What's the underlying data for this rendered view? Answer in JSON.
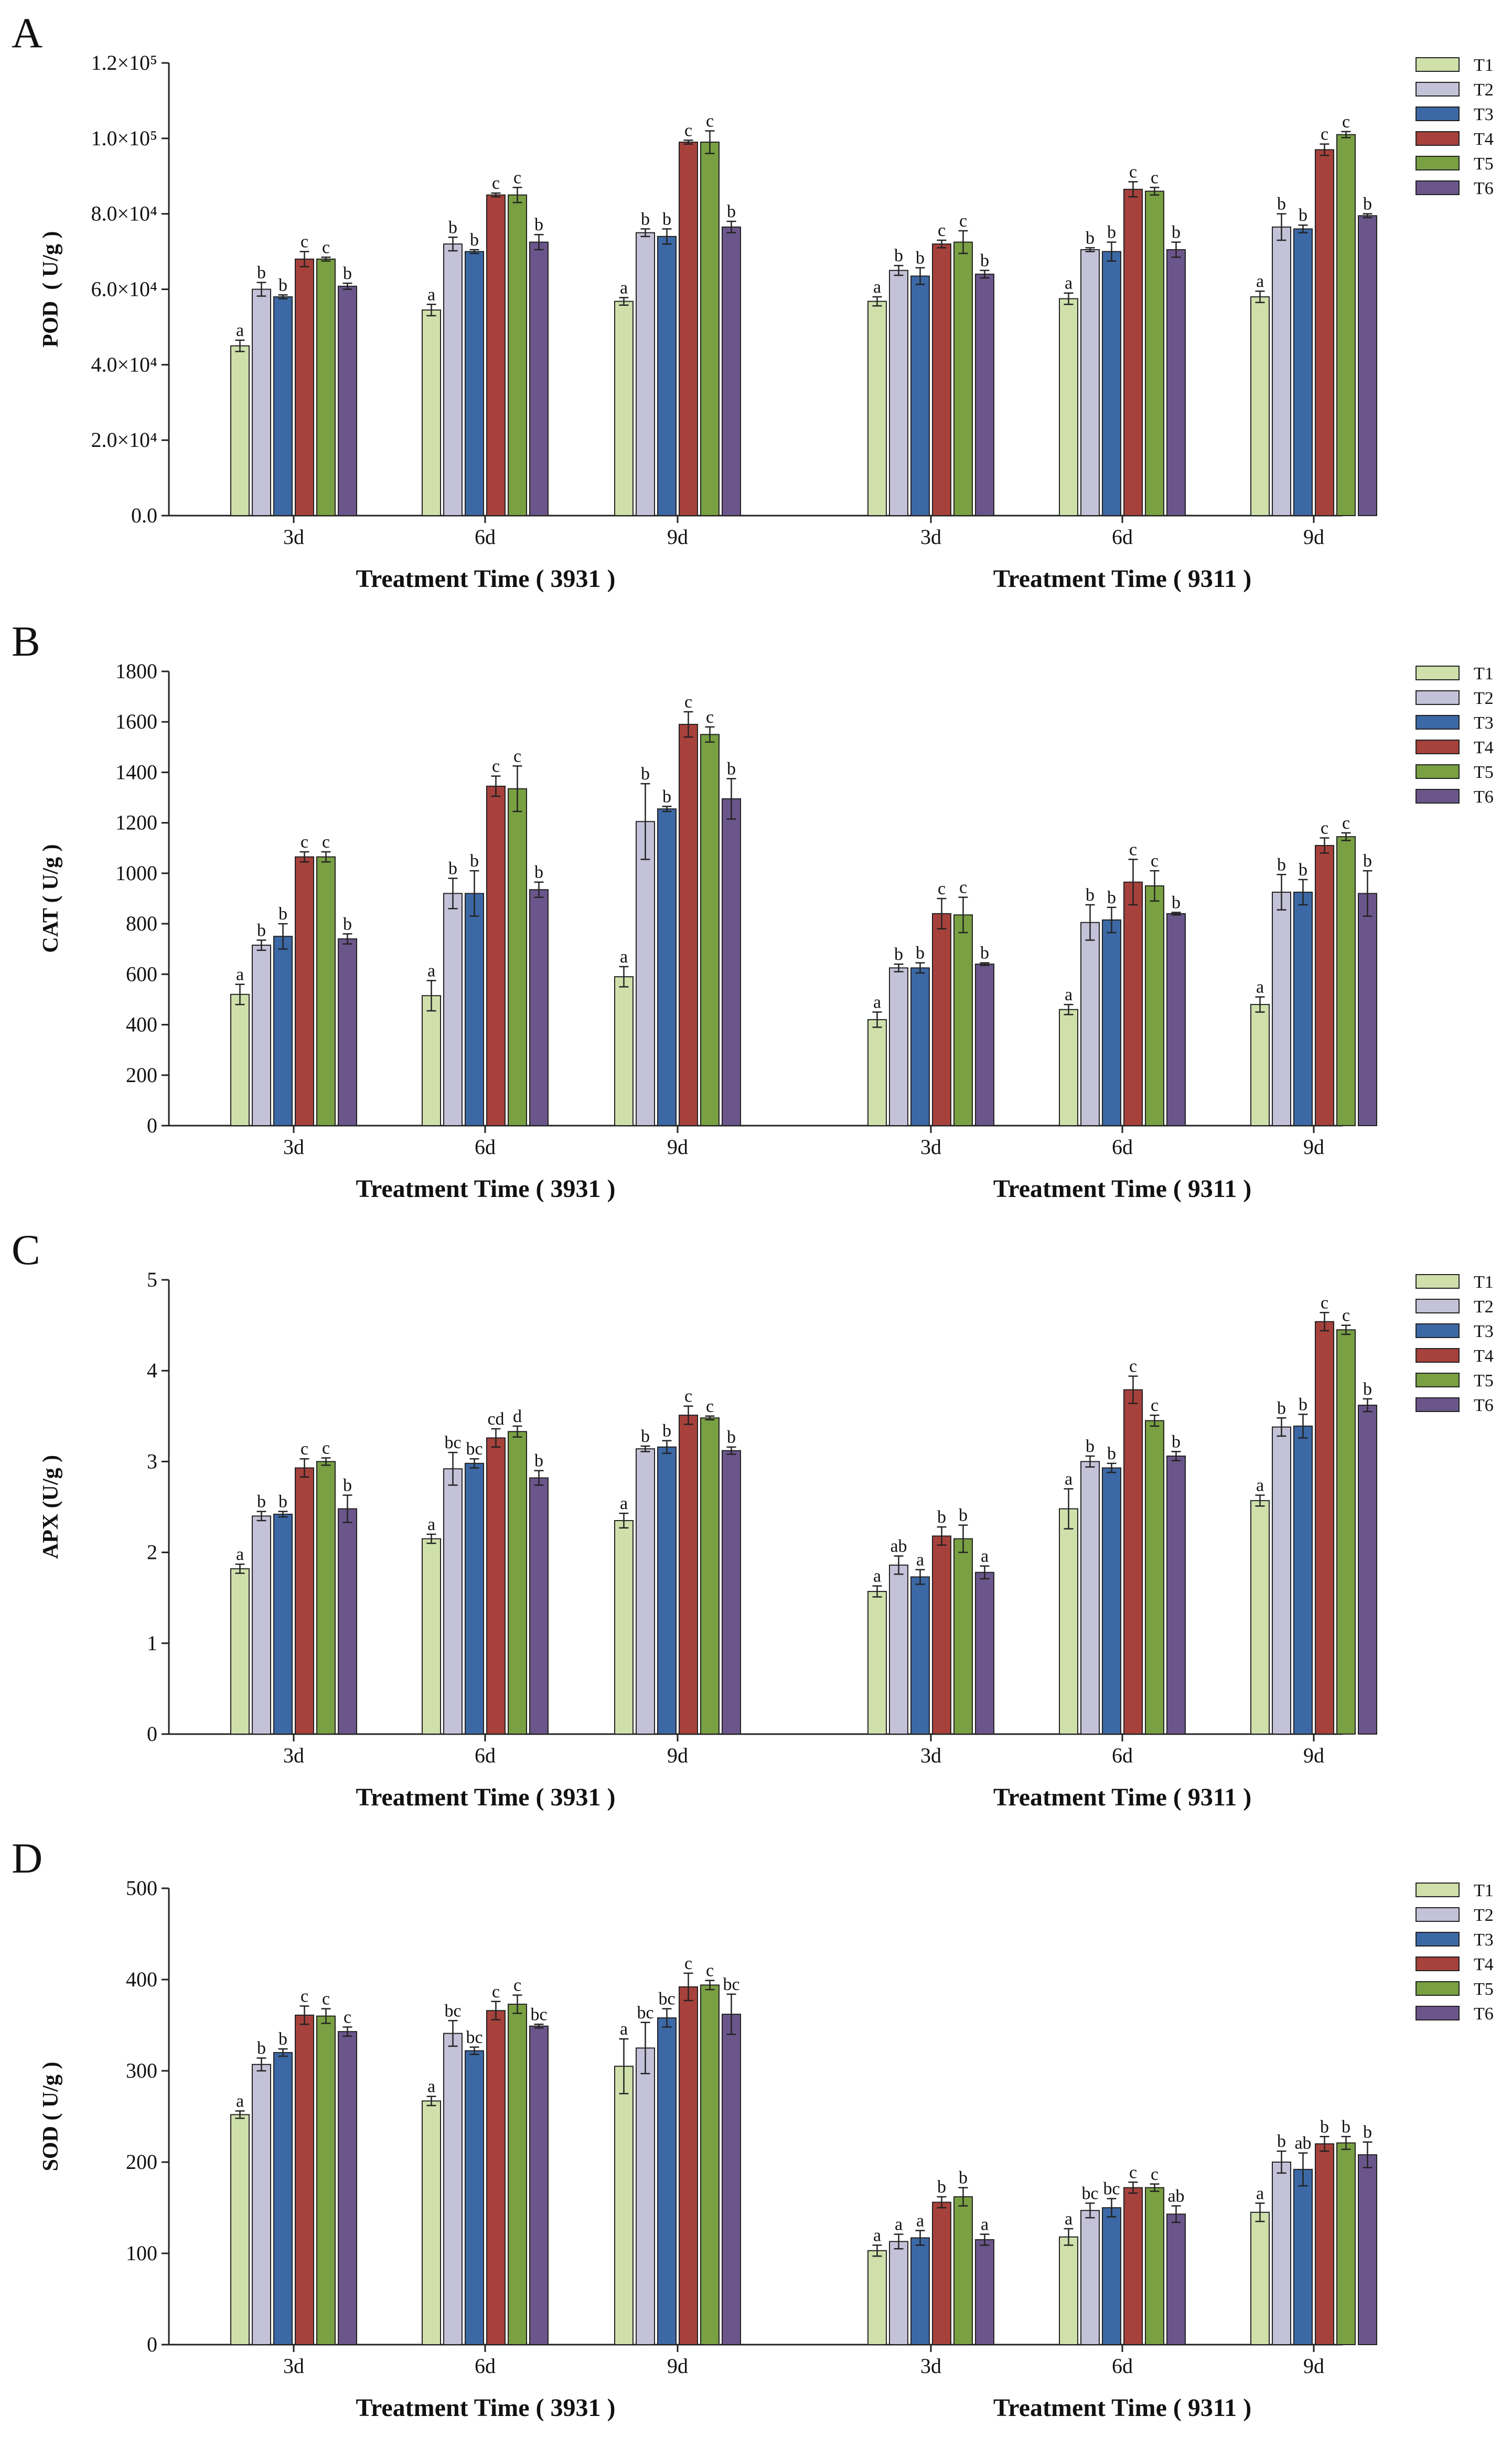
{
  "chart_data": [
    {
      "type": "bar",
      "panel": "A",
      "ylabel": "POD  ( U/g )",
      "ylim": [
        0,
        120000
      ],
      "yticks": [
        0,
        20000,
        40000,
        60000,
        80000,
        100000,
        120000
      ],
      "ytick_labels": [
        "0.0",
        "2.0×10⁴",
        "4.0×10⁴",
        "6.0×10⁴",
        "8.0×10⁴",
        "1.0×10⁵",
        "1.2×10⁵"
      ],
      "groups": [
        {
          "xlabel": "Treatment Time ( 3931 )",
          "categories": [
            "3d",
            "6d",
            "9d"
          ]
        },
        {
          "xlabel": "Treatment Time ( 9311 )",
          "categories": [
            "3d",
            "6d",
            "9d"
          ]
        }
      ],
      "series": [
        {
          "name": "T1",
          "values": [
            45000,
            54500,
            56800,
            56800,
            57500,
            58000
          ],
          "errors": [
            1500,
            1500,
            1000,
            1200,
            1500,
            1500
          ],
          "labels": [
            "a",
            "a",
            "a",
            "a",
            "a",
            "a"
          ]
        },
        {
          "name": "T2",
          "values": [
            60000,
            72000,
            75000,
            65000,
            70500,
            76500
          ],
          "errors": [
            1800,
            1800,
            1000,
            1300,
            500,
            3500
          ],
          "labels": [
            "b",
            "b",
            "b",
            "b",
            "b",
            "b"
          ]
        },
        {
          "name": "T3",
          "values": [
            58000,
            70000,
            74000,
            63500,
            70000,
            76000
          ],
          "errors": [
            500,
            500,
            2000,
            2200,
            2500,
            1000
          ],
          "labels": [
            "b",
            "b",
            "b",
            "b",
            "b",
            "b"
          ]
        },
        {
          "name": "T4",
          "values": [
            68000,
            85000,
            99000,
            72000,
            86500,
            97000
          ],
          "errors": [
            2000,
            500,
            500,
            1000,
            2000,
            1500
          ],
          "labels": [
            "c",
            "c",
            "c",
            "c",
            "c",
            "c"
          ]
        },
        {
          "name": "T5",
          "values": [
            68000,
            85000,
            99000,
            72500,
            86000,
            101000
          ],
          "errors": [
            500,
            2000,
            3000,
            3000,
            1000,
            800
          ],
          "labels": [
            "c",
            "c",
            "c",
            "c",
            "c",
            "c"
          ]
        },
        {
          "name": "T6",
          "values": [
            60800,
            72500,
            76500,
            64000,
            70500,
            79500
          ],
          "errors": [
            800,
            2000,
            1500,
            1000,
            2000,
            500
          ],
          "labels": [
            "b",
            "b",
            "b",
            "b",
            "b",
            "b"
          ]
        }
      ]
    },
    {
      "type": "bar",
      "panel": "B",
      "ylabel": "CAT ( U/g )",
      "ylim": [
        0,
        1800
      ],
      "yticks": [
        0,
        200,
        400,
        600,
        800,
        1000,
        1200,
        1400,
        1600,
        1800
      ],
      "ytick_labels": [
        "0",
        "200",
        "400",
        "600",
        "800",
        "1000",
        "1200",
        "1400",
        "1600",
        "1800"
      ],
      "groups": [
        {
          "xlabel": "Treatment Time ( 3931 )",
          "categories": [
            "3d",
            "6d",
            "9d"
          ]
        },
        {
          "xlabel": "Treatment Time ( 9311 )",
          "categories": [
            "3d",
            "6d",
            "9d"
          ]
        }
      ],
      "series": [
        {
          "name": "T1",
          "values": [
            520,
            515,
            590,
            420,
            460,
            480
          ],
          "errors": [
            40,
            60,
            40,
            30,
            20,
            30
          ],
          "labels": [
            "a",
            "a",
            "a",
            "a",
            "a",
            "a"
          ]
        },
        {
          "name": "T2",
          "values": [
            715,
            920,
            1205,
            625,
            805,
            925
          ],
          "errors": [
            20,
            60,
            150,
            15,
            70,
            70
          ],
          "labels": [
            "b",
            "b",
            "b",
            "b",
            "b",
            "b"
          ]
        },
        {
          "name": "T3",
          "values": [
            750,
            920,
            1255,
            625,
            815,
            925
          ],
          "errors": [
            50,
            90,
            10,
            20,
            50,
            50
          ],
          "labels": [
            "b",
            "b",
            "b",
            "b",
            "b",
            "b"
          ]
        },
        {
          "name": "T4",
          "values": [
            1065,
            1345,
            1590,
            840,
            965,
            1110
          ],
          "errors": [
            20,
            40,
            50,
            60,
            90,
            30
          ],
          "labels": [
            "c",
            "c",
            "c",
            "c",
            "c",
            "c"
          ]
        },
        {
          "name": "T5",
          "values": [
            1065,
            1335,
            1550,
            835,
            950,
            1145
          ],
          "errors": [
            20,
            90,
            30,
            70,
            60,
            15
          ],
          "labels": [
            "c",
            "c",
            "c",
            "c",
            "c",
            "c"
          ]
        },
        {
          "name": "T6",
          "values": [
            740,
            935,
            1295,
            640,
            840,
            920
          ],
          "errors": [
            20,
            30,
            80,
            5,
            5,
            90
          ],
          "labels": [
            "b",
            "b",
            "b",
            "b",
            "b",
            "b"
          ]
        }
      ]
    },
    {
      "type": "bar",
      "panel": "C",
      "ylabel": "APX (U/g )",
      "ylim": [
        0,
        5
      ],
      "yticks": [
        0,
        1,
        2,
        3,
        4,
        5
      ],
      "ytick_labels": [
        "0",
        "1",
        "2",
        "3",
        "4",
        "5"
      ],
      "groups": [
        {
          "xlabel": "Treatment Time ( 3931 )",
          "categories": [
            "3d",
            "6d",
            "9d"
          ]
        },
        {
          "xlabel": "Treatment Time ( 9311 )",
          "categories": [
            "3d",
            "6d",
            "9d"
          ]
        }
      ],
      "series": [
        {
          "name": "T1",
          "values": [
            1.82,
            2.15,
            2.35,
            1.57,
            2.48,
            2.57
          ],
          "errors": [
            0.05,
            0.05,
            0.08,
            0.06,
            0.22,
            0.06
          ],
          "labels": [
            "a",
            "a",
            "a",
            "a",
            "a",
            "a"
          ]
        },
        {
          "name": "T2",
          "values": [
            2.4,
            2.92,
            3.14,
            1.86,
            3.0,
            3.38
          ],
          "errors": [
            0.05,
            0.18,
            0.03,
            0.1,
            0.06,
            0.1
          ],
          "labels": [
            "b",
            "bc",
            "b",
            "ab",
            "b",
            "b"
          ]
        },
        {
          "name": "T3",
          "values": [
            2.42,
            2.98,
            3.16,
            1.73,
            2.93,
            3.39
          ],
          "errors": [
            0.03,
            0.05,
            0.07,
            0.08,
            0.05,
            0.13
          ],
          "labels": [
            "b",
            "bc",
            "b",
            "a",
            "b",
            "b"
          ]
        },
        {
          "name": "T4",
          "values": [
            2.93,
            3.26,
            3.51,
            2.18,
            3.79,
            4.54
          ],
          "errors": [
            0.1,
            0.1,
            0.1,
            0.1,
            0.15,
            0.1
          ],
          "labels": [
            "c",
            "cd",
            "c",
            "b",
            "c",
            "c"
          ]
        },
        {
          "name": "T5",
          "values": [
            3.0,
            3.33,
            3.48,
            2.15,
            3.45,
            4.45
          ],
          "errors": [
            0.04,
            0.06,
            0.02,
            0.15,
            0.06,
            0.05
          ],
          "labels": [
            "c",
            "d",
            "c",
            "b",
            "c",
            "c"
          ]
        },
        {
          "name": "T6",
          "values": [
            2.48,
            2.82,
            3.12,
            1.78,
            3.06,
            3.62
          ],
          "errors": [
            0.15,
            0.08,
            0.04,
            0.07,
            0.05,
            0.07
          ],
          "labels": [
            "b",
            "b",
            "b",
            "a",
            "b",
            "b"
          ]
        }
      ]
    },
    {
      "type": "bar",
      "panel": "D",
      "ylabel": "SOD ( U/g )",
      "ylim": [
        0,
        500
      ],
      "yticks": [
        0,
        100,
        200,
        300,
        400,
        500
      ],
      "ytick_labels": [
        "0",
        "100",
        "200",
        "300",
        "400",
        "500"
      ],
      "groups": [
        {
          "xlabel": "Treatment Time ( 3931 )",
          "categories": [
            "3d",
            "6d",
            "9d"
          ]
        },
        {
          "xlabel": "Treatment Time ( 9311 )",
          "categories": [
            "3d",
            "6d",
            "9d"
          ]
        }
      ],
      "series": [
        {
          "name": "T1",
          "values": [
            252,
            267,
            305,
            103,
            118,
            145
          ],
          "errors": [
            4,
            5,
            30,
            6,
            9,
            10
          ],
          "labels": [
            "a",
            "a",
            "a",
            "a",
            "a",
            "a"
          ]
        },
        {
          "name": "T2",
          "values": [
            307,
            341,
            325,
            113,
            147,
            200
          ],
          "errors": [
            7,
            14,
            28,
            8,
            8,
            12
          ],
          "labels": [
            "b",
            "bc",
            "bc",
            "a",
            "bc",
            "b"
          ]
        },
        {
          "name": "T3",
          "values": [
            320,
            322,
            358,
            117,
            150,
            192
          ],
          "errors": [
            4,
            4,
            10,
            8,
            10,
            18
          ],
          "labels": [
            "b",
            "bc",
            "bc",
            "a",
            "bc",
            "ab"
          ]
        },
        {
          "name": "T4",
          "values": [
            361,
            366,
            392,
            156,
            172,
            220
          ],
          "errors": [
            10,
            10,
            15,
            6,
            6,
            8
          ],
          "labels": [
            "c",
            "c",
            "c",
            "b",
            "c",
            "b"
          ]
        },
        {
          "name": "T5",
          "values": [
            360,
            373,
            394,
            162,
            172,
            221
          ],
          "errors": [
            8,
            10,
            5,
            10,
            4,
            7
          ],
          "labels": [
            "c",
            "c",
            "c",
            "b",
            "c",
            "b"
          ]
        },
        {
          "name": "T6",
          "values": [
            343,
            349,
            362,
            115,
            143,
            208
          ],
          "errors": [
            5,
            2,
            22,
            6,
            9,
            14
          ],
          "labels": [
            "c",
            "bc",
            "bc",
            "a",
            "ab",
            "b"
          ]
        }
      ]
    }
  ],
  "legend": [
    {
      "name": "T1",
      "color": "#cfe0ab"
    },
    {
      "name": "T2",
      "color": "#c4c2d8"
    },
    {
      "name": "T3",
      "color": "#3c68a5"
    },
    {
      "name": "T4",
      "color": "#a7413c"
    },
    {
      "name": "T5",
      "color": "#79a042"
    },
    {
      "name": "T6",
      "color": "#6b568b"
    }
  ],
  "colors": {
    "axis": "#222222",
    "bar_stroke": "#222222"
  }
}
